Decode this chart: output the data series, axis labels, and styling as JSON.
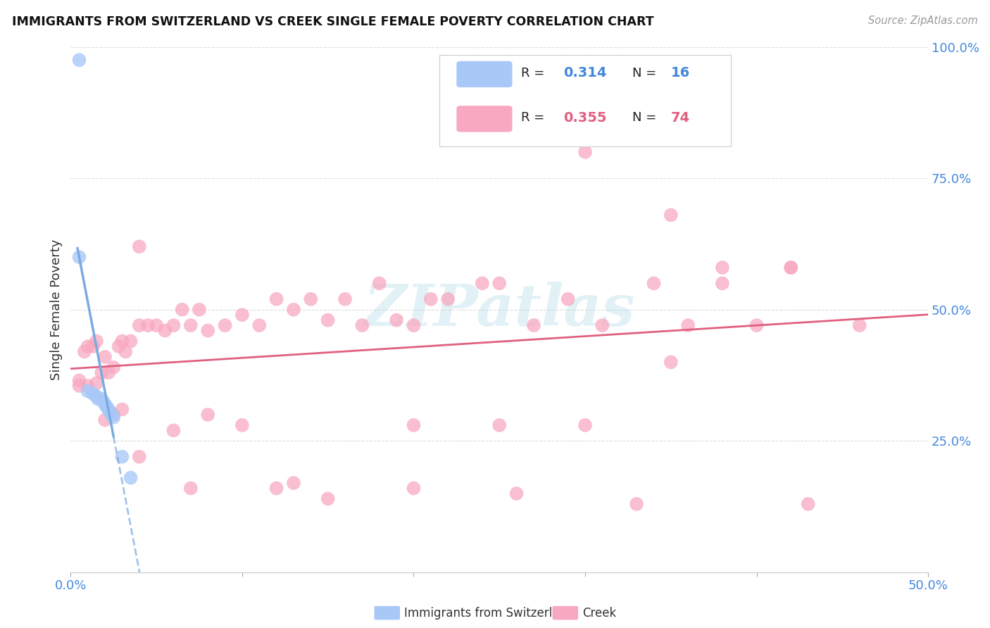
{
  "title": "IMMIGRANTS FROM SWITZERLAND VS CREEK SINGLE FEMALE POVERTY CORRELATION CHART",
  "source": "Source: ZipAtlas.com",
  "ylabel": "Single Female Poverty",
  "xlim": [
    0.0,
    0.5
  ],
  "ylim": [
    0.0,
    1.0
  ],
  "yticks": [
    0.0,
    0.25,
    0.5,
    0.75,
    1.0
  ],
  "ytick_labels": [
    "",
    "25.0%",
    "50.0%",
    "75.0%",
    "100.0%"
  ],
  "xticks": [
    0.0,
    0.1,
    0.2,
    0.3,
    0.4,
    0.5
  ],
  "xtick_labels": [
    "0.0%",
    "",
    "",
    "",
    "",
    "50.0%"
  ],
  "color_swiss": "#a8c8f8",
  "color_creek": "#f8a8c0",
  "color_swiss_line": "#7aace0",
  "color_creek_line": "#e06080",
  "color_tick_labels": "#4488dd",
  "color_grid": "#dddddd",
  "watermark": "ZIPatlas",
  "swiss_scatter_x": [
    0.005,
    0.005,
    0.01,
    0.013,
    0.015,
    0.016,
    0.018,
    0.019,
    0.02,
    0.021,
    0.022,
    0.023,
    0.024,
    0.025,
    0.03,
    0.035
  ],
  "swiss_scatter_y": [
    0.975,
    0.6,
    0.345,
    0.34,
    0.335,
    0.33,
    0.33,
    0.325,
    0.32,
    0.315,
    0.31,
    0.305,
    0.3,
    0.295,
    0.22,
    0.18
  ],
  "creek_scatter_x": [
    0.005,
    0.008,
    0.01,
    0.013,
    0.015,
    0.018,
    0.02,
    0.022,
    0.025,
    0.028,
    0.03,
    0.032,
    0.035,
    0.04,
    0.045,
    0.05,
    0.055,
    0.06,
    0.065,
    0.07,
    0.075,
    0.08,
    0.09,
    0.1,
    0.11,
    0.12,
    0.13,
    0.14,
    0.15,
    0.16,
    0.17,
    0.18,
    0.19,
    0.2,
    0.21,
    0.22,
    0.24,
    0.25,
    0.27,
    0.29,
    0.31,
    0.34,
    0.36,
    0.38,
    0.42,
    0.46,
    0.005,
    0.01,
    0.015,
    0.02,
    0.025,
    0.03,
    0.04,
    0.06,
    0.08,
    0.1,
    0.13,
    0.15,
    0.2,
    0.25,
    0.3,
    0.35,
    0.4,
    0.3,
    0.35,
    0.38,
    0.42,
    0.04,
    0.07,
    0.12,
    0.2,
    0.26,
    0.33,
    0.43
  ],
  "creek_scatter_y": [
    0.365,
    0.42,
    0.43,
    0.43,
    0.44,
    0.38,
    0.41,
    0.38,
    0.39,
    0.43,
    0.44,
    0.42,
    0.44,
    0.47,
    0.47,
    0.47,
    0.46,
    0.47,
    0.5,
    0.47,
    0.5,
    0.46,
    0.47,
    0.49,
    0.47,
    0.52,
    0.5,
    0.52,
    0.48,
    0.52,
    0.47,
    0.55,
    0.48,
    0.47,
    0.52,
    0.52,
    0.55,
    0.55,
    0.47,
    0.52,
    0.47,
    0.55,
    0.47,
    0.55,
    0.58,
    0.47,
    0.355,
    0.355,
    0.36,
    0.29,
    0.3,
    0.31,
    0.22,
    0.27,
    0.3,
    0.28,
    0.17,
    0.14,
    0.28,
    0.28,
    0.28,
    0.4,
    0.47,
    0.8,
    0.68,
    0.58,
    0.58,
    0.62,
    0.16,
    0.16,
    0.16,
    0.15,
    0.13,
    0.13
  ]
}
